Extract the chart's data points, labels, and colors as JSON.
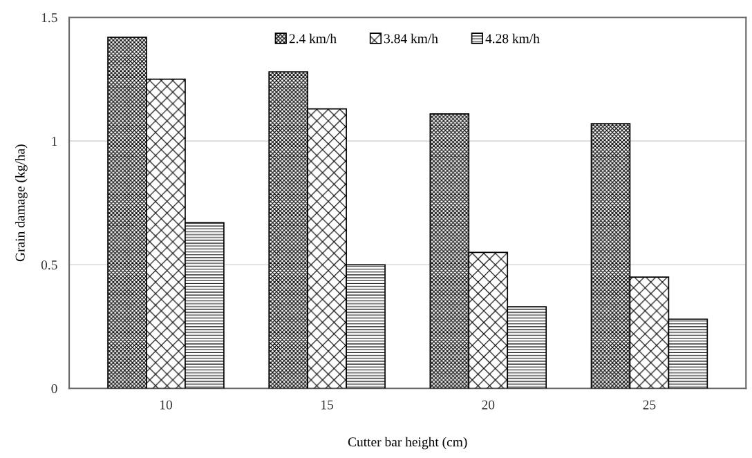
{
  "chart_data": {
    "type": "bar",
    "xlabel": "Cutter bar height (cm)",
    "ylabel": "Grain damage (kg/ha)",
    "categories": [
      "10",
      "15",
      "20",
      "25"
    ],
    "series": [
      {
        "name": "2.4 km/h",
        "color": "#000000",
        "values": [
          1.42,
          1.28,
          1.11,
          1.07
        ]
      },
      {
        "name": "3.84 km/h",
        "color": "#000000",
        "values": [
          1.25,
          1.13,
          0.55,
          0.45
        ]
      },
      {
        "name": "4.28 km/h",
        "color": "#000000",
        "values": [
          0.67,
          0.5,
          0.33,
          0.28
        ]
      }
    ],
    "ylim": [
      0,
      1.5
    ],
    "yticks": [
      0,
      0.5,
      1,
      1.5
    ],
    "grid": "y",
    "legend": "top"
  }
}
